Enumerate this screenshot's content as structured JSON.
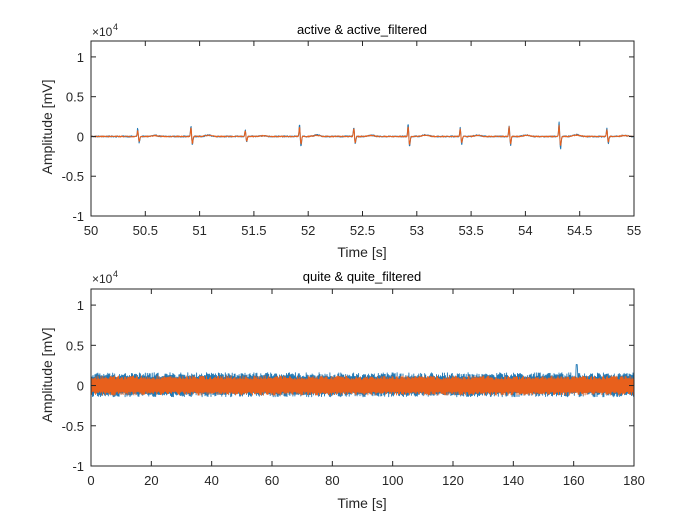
{
  "colors": {
    "series1": "#1f77b4",
    "series2": "#e8601c",
    "axis": "#262626",
    "background": "#ffffff"
  },
  "chart_data": [
    {
      "type": "line",
      "title": "active & active_filtered",
      "xlabel": "Time [s]",
      "ylabel": "Amplitude [mV]",
      "exponent_label": "×10",
      "exponent_power": "4",
      "xlim": [
        50,
        55
      ],
      "ylim": [
        -1,
        1.2
      ],
      "xticks": [
        50,
        50.5,
        51,
        51.5,
        52,
        52.5,
        53,
        53.5,
        54,
        54.5,
        55
      ],
      "xtick_labels": [
        "50",
        "50.5",
        "51",
        "51.5",
        "52",
        "52.5",
        "53",
        "53.5",
        "54",
        "54.5",
        "55"
      ],
      "yticks": [
        -1,
        -0.5,
        0,
        0.5,
        1
      ],
      "ytick_labels": [
        "-1",
        "-0.5",
        "0",
        "0.5",
        "1"
      ],
      "grid": false,
      "series": [
        {
          "name": "active",
          "signal": "ecg",
          "beat_times": [
            50.43,
            50.92,
            51.42,
            51.92,
            52.42,
            52.92,
            53.4,
            53.85,
            54.31,
            54.75
          ],
          "peak_amplitudes": [
            0.1,
            0.13,
            0.08,
            0.15,
            0.12,
            0.16,
            0.12,
            0.14,
            0.19,
            0.11
          ],
          "noise": 0.008
        },
        {
          "name": "active_filtered",
          "signal": "ecg",
          "beat_times": [
            50.43,
            50.92,
            51.42,
            51.92,
            52.42,
            52.92,
            53.4,
            53.85,
            54.31,
            54.75
          ],
          "peak_amplitudes": [
            0.08,
            0.11,
            0.07,
            0.12,
            0.1,
            0.13,
            0.1,
            0.12,
            0.15,
            0.09
          ],
          "noise": 0.006
        }
      ]
    },
    {
      "type": "line",
      "title": "quite & quite_filtered",
      "xlabel": "Time [s]",
      "ylabel": "Amplitude [mV]",
      "exponent_label": "×10",
      "exponent_power": "4",
      "xlim": [
        0,
        180
      ],
      "ylim": [
        -1,
        1.2
      ],
      "xticks": [
        0,
        20,
        40,
        60,
        80,
        100,
        120,
        140,
        160,
        180
      ],
      "xtick_labels": [
        "0",
        "20",
        "40",
        "60",
        "80",
        "100",
        "120",
        "140",
        "160",
        "180"
      ],
      "yticks": [
        -1,
        -0.5,
        0,
        0.5,
        1
      ],
      "ytick_labels": [
        "-1",
        "-0.5",
        "0",
        "0.5",
        "1"
      ],
      "grid": false,
      "series": [
        {
          "name": "quite",
          "signal": "dense",
          "upper": 0.16,
          "lower": -0.14,
          "spike": {
            "x": 161,
            "value": 0.26
          }
        },
        {
          "name": "quite_filtered",
          "signal": "dense",
          "upper": 0.12,
          "lower": -0.12
        }
      ]
    }
  ]
}
